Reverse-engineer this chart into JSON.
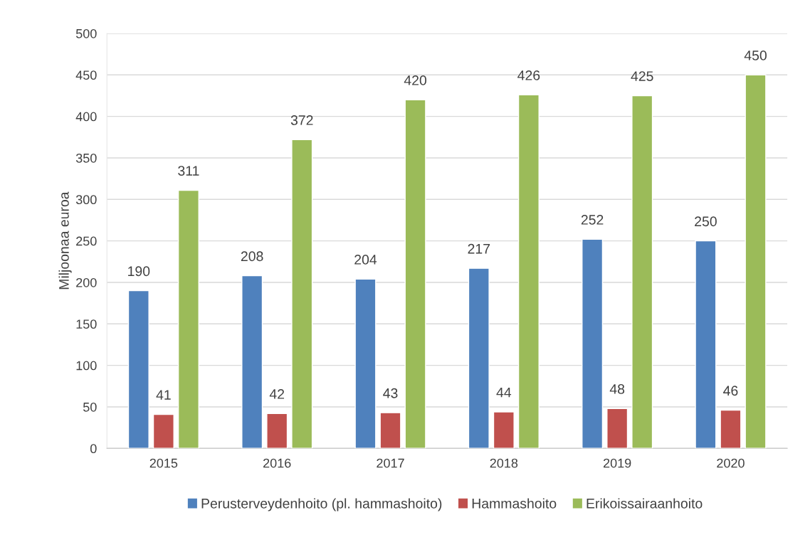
{
  "chart_data": {
    "type": "bar",
    "ylabel": "Miljoonaa euroa",
    "categories": [
      "2015",
      "2016",
      "2017",
      "2018",
      "2019",
      "2020"
    ],
    "series": [
      {
        "name": "Perusterveydenhoito (pl. hammashoito)",
        "color": "#4f81bd",
        "values": [
          190,
          208,
          204,
          217,
          252,
          250
        ]
      },
      {
        "name": "Hammashoito",
        "color": "#c0504d",
        "values": [
          41,
          42,
          43,
          44,
          48,
          46
        ]
      },
      {
        "name": "Erikoissairaanhoito",
        "color": "#9bbb59",
        "values": [
          311,
          372,
          420,
          426,
          425,
          450
        ]
      }
    ],
    "ylim": [
      0,
      500
    ],
    "yticks": [
      0,
      50,
      100,
      150,
      200,
      250,
      300,
      350,
      400,
      450,
      500
    ],
    "grid": "y",
    "legend": "bottom",
    "data_labels": true
  }
}
